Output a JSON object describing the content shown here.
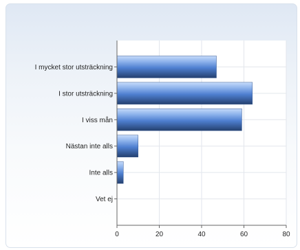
{
  "chart_data": {
    "type": "bar",
    "orientation": "horizontal",
    "categories": [
      "I mycket stor utsträckning",
      "I stor utsträckning",
      "I viss mån",
      "Nästan inte alls",
      "Inte alls",
      "Vet ej"
    ],
    "values": [
      47,
      64,
      59,
      10,
      3,
      0
    ],
    "xlim": [
      0,
      80
    ],
    "xticks": [
      "0",
      "20",
      "40",
      "60",
      "80"
    ],
    "grid": true,
    "title": "",
    "xlabel": "",
    "ylabel": "",
    "colors": {
      "bar_light": "#8fb4ec",
      "bar_mid": "#4e7fd0",
      "bar_dark": "#24406e",
      "grid": "#e2e6ec",
      "axis": "#666666"
    }
  }
}
